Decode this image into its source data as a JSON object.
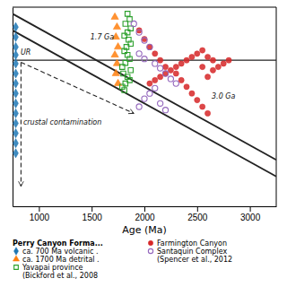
{
  "chart_data": {
    "type": "scatter",
    "xlabel": "Age (Ma)",
    "xlim": [
      750,
      3250
    ],
    "ylim": [
      -22,
      8
    ],
    "xticks": [
      1000,
      1500,
      2000,
      2500,
      3000
    ],
    "yticks": [],
    "tick_labels": "x",
    "legend": "bottom",
    "legend_title": "Perry Canyon Forma...",
    "series": [
      {
        "name": "ca. 700 Ma volcanic .",
        "marker": "diamond",
        "x": [
          780,
          780,
          780,
          780,
          780,
          780,
          780,
          780,
          780,
          780,
          780,
          780,
          780,
          780
        ],
        "y": [
          3.5,
          2.0,
          0.8,
          -0.5,
          -2.0,
          -3.5,
          -5.0,
          -6.5,
          -8.0,
          -9.5,
          -11.0,
          -12.5,
          -14.0,
          5.0
        ]
      },
      {
        "name": "ca. 1700 Ma detrital .",
        "marker": "triangle",
        "x": [
          1720,
          1740,
          1730,
          1750,
          1720,
          1740,
          1730,
          1750
        ],
        "y": [
          6.5,
          5.0,
          3.5,
          2.0,
          0.8,
          -0.5,
          -2.0,
          -3.5
        ]
      },
      {
        "name": "Yavapai province\n(Bickford et al., 2008",
        "marker": "square-open",
        "x": [
          1840,
          1860,
          1820,
          1870,
          1840,
          1810,
          1850,
          1870,
          1830,
          1810,
          1840,
          1860,
          1820,
          1790,
          1870,
          1800,
          1840,
          1860,
          1820,
          1790,
          1810
        ],
        "y": [
          7.0,
          6.2,
          5.5,
          4.8,
          4.2,
          3.7,
          3.1,
          2.5,
          2.0,
          1.4,
          0.8,
          0.2,
          -0.4,
          -1.0,
          -1.5,
          -2.0,
          -2.5,
          -3.0,
          -3.5,
          -4.0,
          -4.5
        ]
      },
      {
        "name": "Farmington Canyon",
        "marker": "circle",
        "x": [
          1950,
          2000,
          2050,
          2100,
          2150,
          2200,
          2300,
          2350,
          2400,
          2450,
          2500,
          2550,
          2600,
          2550,
          2500,
          2450,
          2400,
          2350,
          2300,
          2250,
          2200,
          2150,
          2100,
          2050,
          2600,
          2650,
          2550,
          2650,
          2600,
          2700,
          2750,
          2800
        ],
        "y": [
          4.5,
          3.2,
          2.0,
          1.0,
          0.0,
          -1.0,
          -2.0,
          -3.0,
          -4.0,
          -5.0,
          -6.0,
          -7.0,
          -8.0,
          1.5,
          1.0,
          0.5,
          0.0,
          -0.5,
          -1.0,
          -1.5,
          -2.0,
          -2.5,
          -3.0,
          -3.5,
          0.5,
          0.0,
          -1.0,
          -1.5,
          -2.5,
          -1.0,
          -0.5,
          0.0
        ]
      },
      {
        "name": "Santaquin Complex\n(Spencer et al., 2012",
        "marker": "circle-open",
        "x": [
          1900,
          1950,
          2000,
          2050,
          1950,
          2000,
          2100,
          2150,
          2200,
          2250,
          2300,
          2100,
          2050,
          2000,
          2150,
          1950,
          2200
        ],
        "y": [
          5.5,
          4.2,
          3.0,
          2.0,
          1.0,
          0.2,
          -0.5,
          -1.2,
          -2.0,
          -2.8,
          -3.5,
          -4.2,
          -5.0,
          -5.8,
          -6.5,
          -7.0,
          -7.5
        ]
      }
    ],
    "lines": [
      {
        "x": [
          750,
          3250
        ],
        "y": [
          7.0,
          -15.0
        ]
      },
      {
        "x": [
          750,
          3250
        ],
        "y": [
          4.5,
          -17.5
        ]
      }
    ],
    "hlines": [
      0
    ],
    "arrows": [
      {
        "x": [
          830,
          830
        ],
        "y": [
          -0.3,
          -19.0
        ],
        "line_style": "dashed"
      },
      {
        "x": [
          830,
          1900
        ],
        "y": [
          -0.3,
          -8.0
        ],
        "line_style": "dashed"
      }
    ],
    "annotations": [
      {
        "text": "1.7 Ga",
        "x": 1600,
        "y": 3.5
      },
      {
        "text": "3.0 Ga",
        "x": 2750,
        "y": -5.5
      },
      {
        "text": "UR",
        "x": 775,
        "y": 0.6
      },
      {
        "text": "crustal contamination",
        "x": 800,
        "y": -10
      }
    ]
  }
}
